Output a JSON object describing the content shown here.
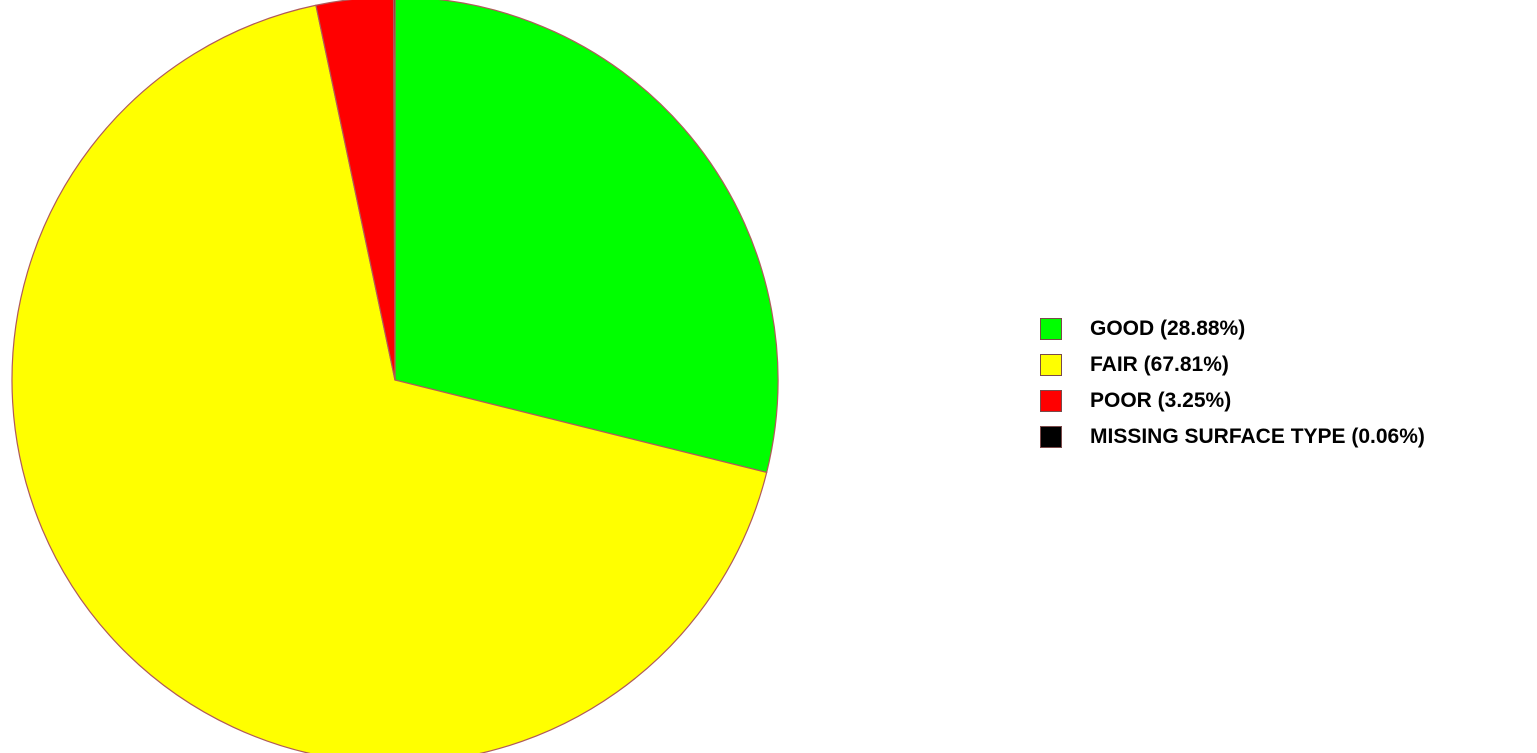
{
  "chart_data": {
    "type": "pie",
    "slices": [
      {
        "label": "GOOD (28.88%)",
        "value": 28.88,
        "color": "#00ff00"
      },
      {
        "label": "FAIR (67.81%)",
        "value": 67.81,
        "color": "#ffff00"
      },
      {
        "label": "POOR (3.25%)",
        "value": 3.25,
        "color": "#ff0000"
      },
      {
        "label": "MISSING SURFACE TYPE (0.06%)",
        "value": 0.06,
        "color": "#000000"
      }
    ],
    "start": "12 o'clock",
    "direction": "clockwise",
    "slice_border_color": "#b05a5a",
    "legend_position": "right"
  }
}
